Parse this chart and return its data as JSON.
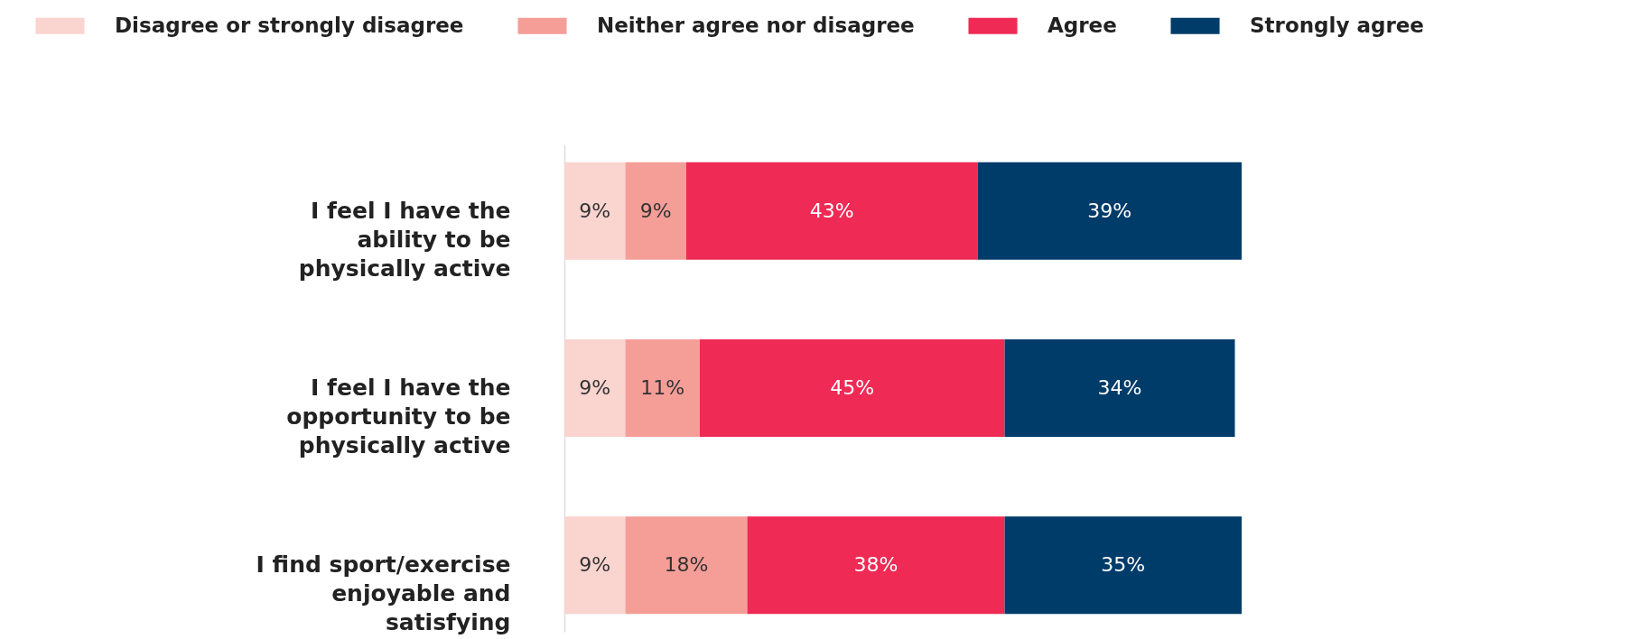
{
  "chart_data": {
    "type": "bar",
    "orientation": "horizontal",
    "stacked": true,
    "legend": "top",
    "tick_labels": "y",
    "categories": [
      "I feel I have the ability to be physically active",
      "I feel I have the opportunity to be physically active",
      "I find sport/exercise enjoyable and satisfying"
    ],
    "series": [
      {
        "name": "Disagree or strongly disagree",
        "color": "#fad4cf",
        "values": [
          9,
          9,
          9
        ],
        "value_labels": [
          "9%",
          "9%",
          "9%"
        ]
      },
      {
        "name": "Neither agree nor disagree",
        "color": "#f59e98",
        "values": [
          9,
          11,
          18
        ],
        "value_labels": [
          "9%",
          "11%",
          "18%"
        ]
      },
      {
        "name": "Agree",
        "color": "#ee2a55",
        "values": [
          43,
          45,
          38
        ],
        "value_labels": [
          "43%",
          "45%",
          "38%"
        ]
      },
      {
        "name": "Strongly agree",
        "color": "#003c69",
        "values": [
          39,
          34,
          35
        ],
        "value_labels": [
          "39%",
          "34%",
          "35%"
        ]
      }
    ]
  }
}
